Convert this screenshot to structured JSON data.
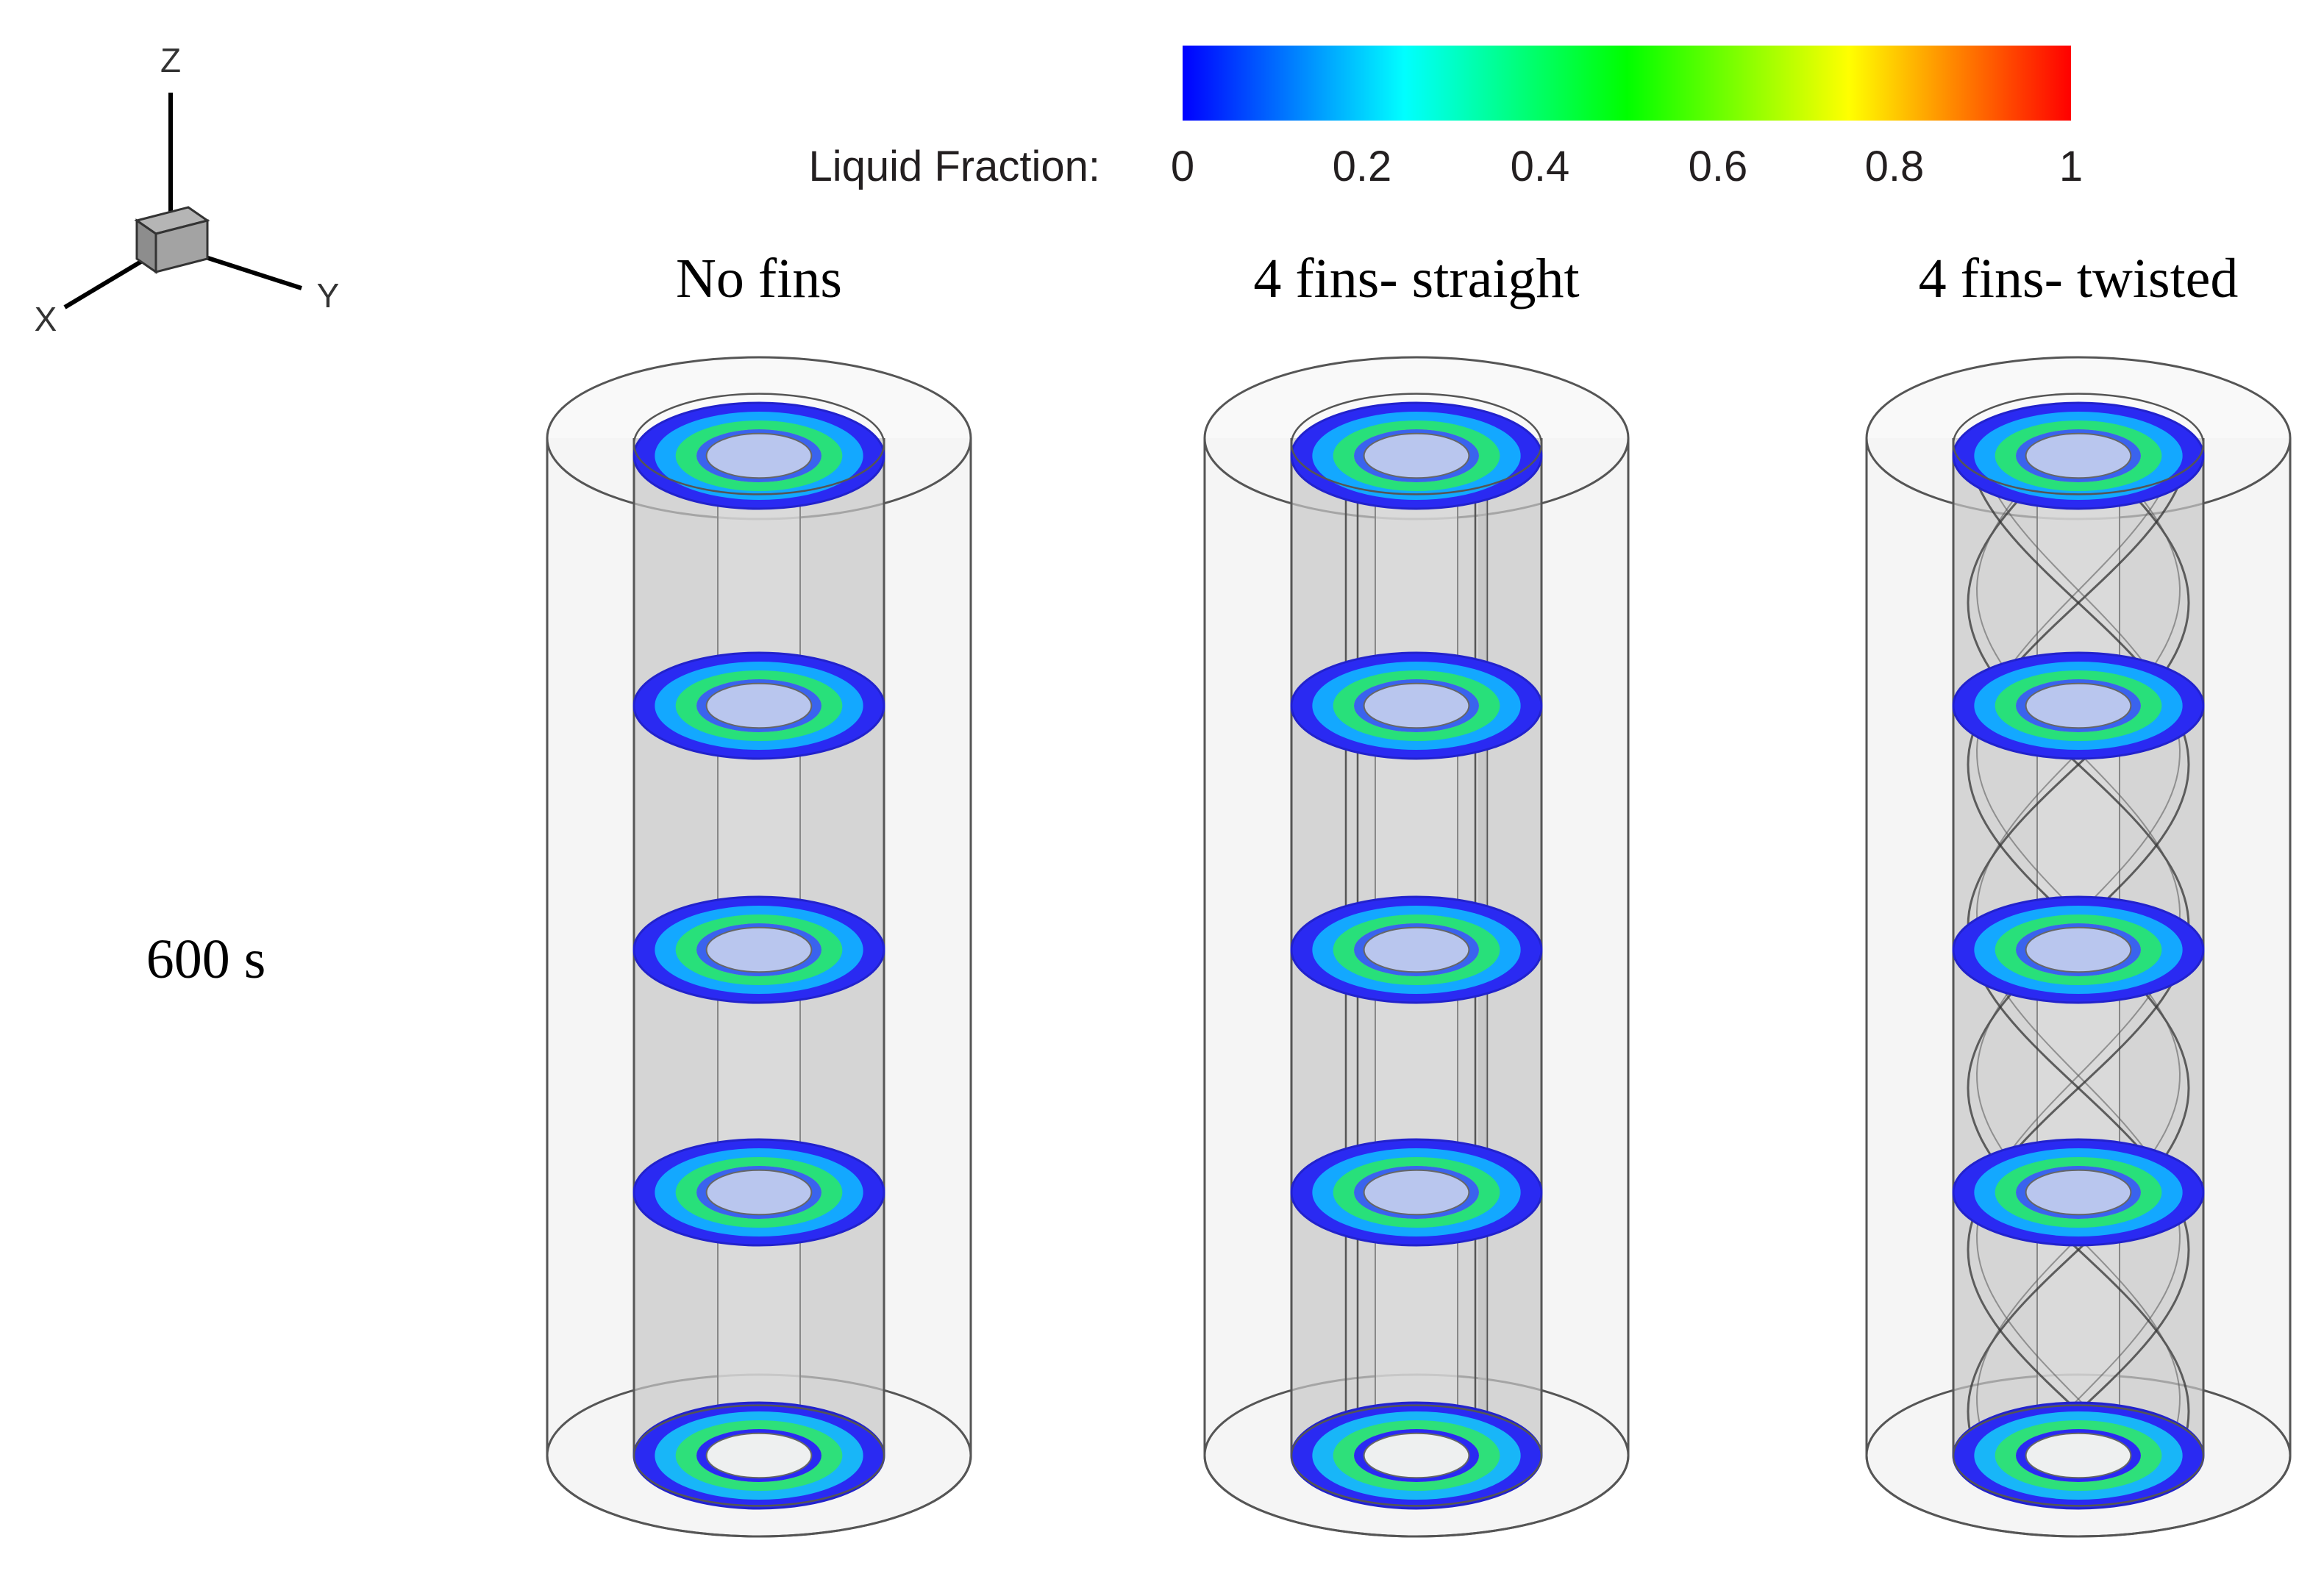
{
  "colorbar": {
    "label": "Liquid Fraction:",
    "ticks": [
      "0",
      "0.2",
      "0.4",
      "0.6",
      "0.8",
      "1"
    ],
    "stops": [
      "#0000ff",
      "#00ffff",
      "#00ff00",
      "#ffff00",
      "#ff0000"
    ],
    "range": [
      0,
      1
    ]
  },
  "axes": {
    "z": "Z",
    "x": "X",
    "y": "Y"
  },
  "time_label": "600 s",
  "panels": [
    {
      "title": "No fins",
      "fins": "none"
    },
    {
      "title": "4 fins- straight",
      "fins": "straight"
    },
    {
      "title": "4 fins- twisted",
      "fins": "twisted"
    }
  ],
  "slices": {
    "count": 5,
    "top_rings": [
      "#2a2af2",
      "#13a8ff",
      "#28e07a",
      "#c8ef1e",
      "#f29a1c",
      "#eb4848"
    ],
    "bottom_ring": [
      "#2a2af2",
      "#18b6f8",
      "#2ee07a",
      "#e6ec2a",
      "#2ee07a",
      "#2a2af2"
    ]
  },
  "colors": {
    "cylinder_fill": "#c8c8c8",
    "outline": "#555555"
  }
}
